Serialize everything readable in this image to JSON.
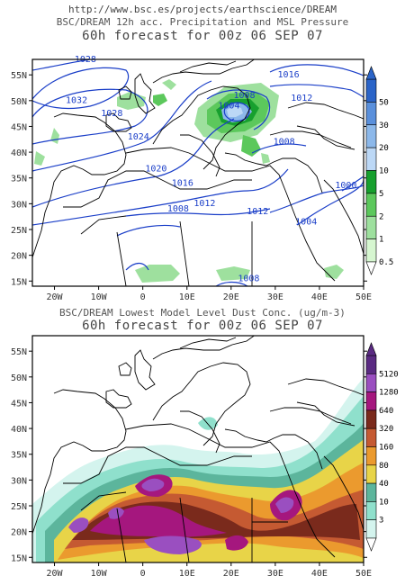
{
  "source_url": "http://www.bsc.es/projects/earthscience/DREAM",
  "panel_top": {
    "title_line1": "BSC/DREAM 12h acc. Precipitation and MSL Pressure",
    "title_line2": "60h forecast for 00z 06 SEP 07",
    "lat_labels": [
      "55N",
      "50N",
      "45N",
      "40N",
      "35N",
      "30N",
      "25N",
      "20N",
      "15N"
    ],
    "lon_labels": [
      "20W",
      "10W",
      "0",
      "10E",
      "20E",
      "30E",
      "40E",
      "50E"
    ],
    "colorbar_labels": [
      "50",
      "30",
      "20",
      "10",
      "5",
      "2",
      "1",
      "0.5"
    ],
    "colorbar_colors": [
      "#2b64c8",
      "#5a90dc",
      "#8cb8ea",
      "#bcd8f6",
      "#17a02e",
      "#5cc85c",
      "#9ee09e",
      "#d6f6d0"
    ],
    "isobar_labels": [
      {
        "text": "1028",
        "lon": -13,
        "lat": 57.5
      },
      {
        "text": "1032",
        "lon": -15,
        "lat": 49.5
      },
      {
        "text": "1028",
        "lon": -7,
        "lat": 47.0
      },
      {
        "text": "1024",
        "lon": -1,
        "lat": 42.5
      },
      {
        "text": "1020",
        "lon": 3,
        "lat": 36.3
      },
      {
        "text": "1016",
        "lon": 9,
        "lat": 33.5
      },
      {
        "text": "1012",
        "lon": 14,
        "lat": 29.5
      },
      {
        "text": "1008",
        "lon": 8,
        "lat": 28.5
      },
      {
        "text": "1008",
        "lon": 24,
        "lat": 15.0
      },
      {
        "text": "1012",
        "lon": 26,
        "lat": 28.0
      },
      {
        "text": "1004",
        "lon": 37,
        "lat": 26.0
      },
      {
        "text": "1000",
        "lon": 46,
        "lat": 33.0
      },
      {
        "text": "1008",
        "lon": 32,
        "lat": 41.5
      },
      {
        "text": "1004",
        "lon": 19.5,
        "lat": 48.5
      },
      {
        "text": "1008",
        "lon": 23,
        "lat": 50.5
      },
      {
        "text": "1012",
        "lon": 36,
        "lat": 50.0
      },
      {
        "text": "1016",
        "lon": 33,
        "lat": 54.5
      }
    ]
  },
  "panel_bottom": {
    "title_line1": "BSC/DREAM Lowest Model Level Dust Conc. (ug/m-3)",
    "title_line2": "60h forecast for 00z 06 SEP 07",
    "lat_labels": [
      "55N",
      "50N",
      "45N",
      "40N",
      "35N",
      "30N",
      "25N",
      "20N",
      "15N"
    ],
    "lon_labels": [
      "20W",
      "10W",
      "0",
      "10E",
      "20E",
      "30E",
      "40E",
      "50E"
    ],
    "colorbar_labels": [
      "5120",
      "1280",
      "640",
      "320",
      "160",
      "80",
      "40",
      "10",
      "3"
    ],
    "colorbar_colors": [
      "#5a2a82",
      "#9a4fc0",
      "#a5177e",
      "#7a2a1c",
      "#c55a32",
      "#eb9a2e",
      "#e8d448",
      "#5cb59c",
      "#8fe0cc",
      "#d4f4ee"
    ]
  },
  "colors": {
    "coastline": "#000000",
    "isobar": "#1a3ec8",
    "isobar_label": "#1a3ec8",
    "title_text": "#444444"
  }
}
